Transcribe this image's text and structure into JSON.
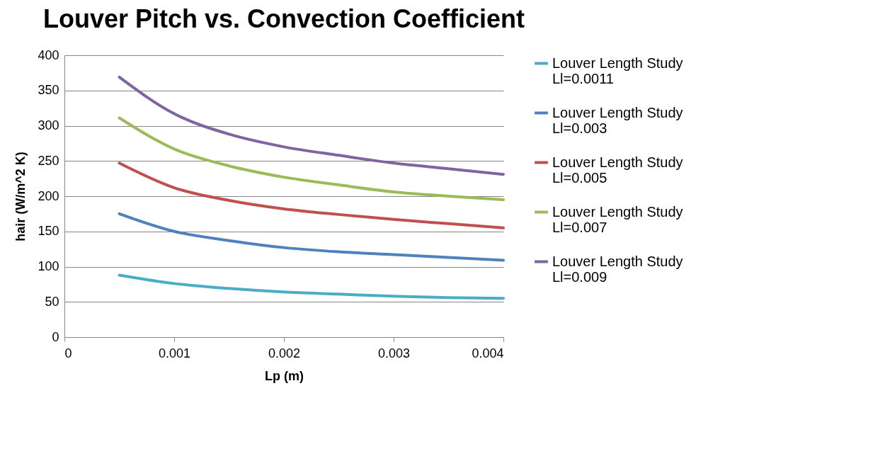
{
  "chart_data": {
    "type": "line",
    "title": "Louver Pitch vs. Convection Coefficient",
    "xlabel": "Lp (m)",
    "ylabel": "hair (W/m^2 K)",
    "x": [
      0.0005,
      0.001,
      0.0015,
      0.002,
      0.0025,
      0.003,
      0.0035,
      0.004
    ],
    "series": [
      {
        "name": "Louver Length Study Ll=0.0011",
        "color": "#4bacc6",
        "values": [
          88,
          76,
          69,
          64,
          61,
          58,
          56,
          55
        ]
      },
      {
        "name": "Louver Length Study Ll=0.003",
        "color": "#4f81bd",
        "values": [
          175,
          150,
          137,
          127,
          121,
          117,
          113,
          109
        ]
      },
      {
        "name": "Louver Length Study Ll=0.005",
        "color": "#c0504d",
        "values": [
          247,
          212,
          194,
          182,
          174,
          167,
          161,
          155
        ]
      },
      {
        "name": "Louver Length Study Ll=0.007",
        "color": "#9bbb59",
        "values": [
          311,
          267,
          243,
          227,
          216,
          206,
          200,
          195
        ]
      },
      {
        "name": "Louver Length Study Ll=0.009",
        "color": "#8064a2",
        "values": [
          369,
          317,
          288,
          270,
          258,
          247,
          239,
          231
        ]
      }
    ],
    "xlim": [
      0,
      0.004
    ],
    "xticks": [
      0,
      0.001,
      0.002,
      0.003,
      0.004
    ],
    "ylim": [
      0,
      400
    ],
    "yticks": [
      0,
      50,
      100,
      150,
      200,
      250,
      300,
      350,
      400
    ],
    "grid": "y",
    "legend": "right",
    "marker": "none",
    "line_style": "solid"
  }
}
